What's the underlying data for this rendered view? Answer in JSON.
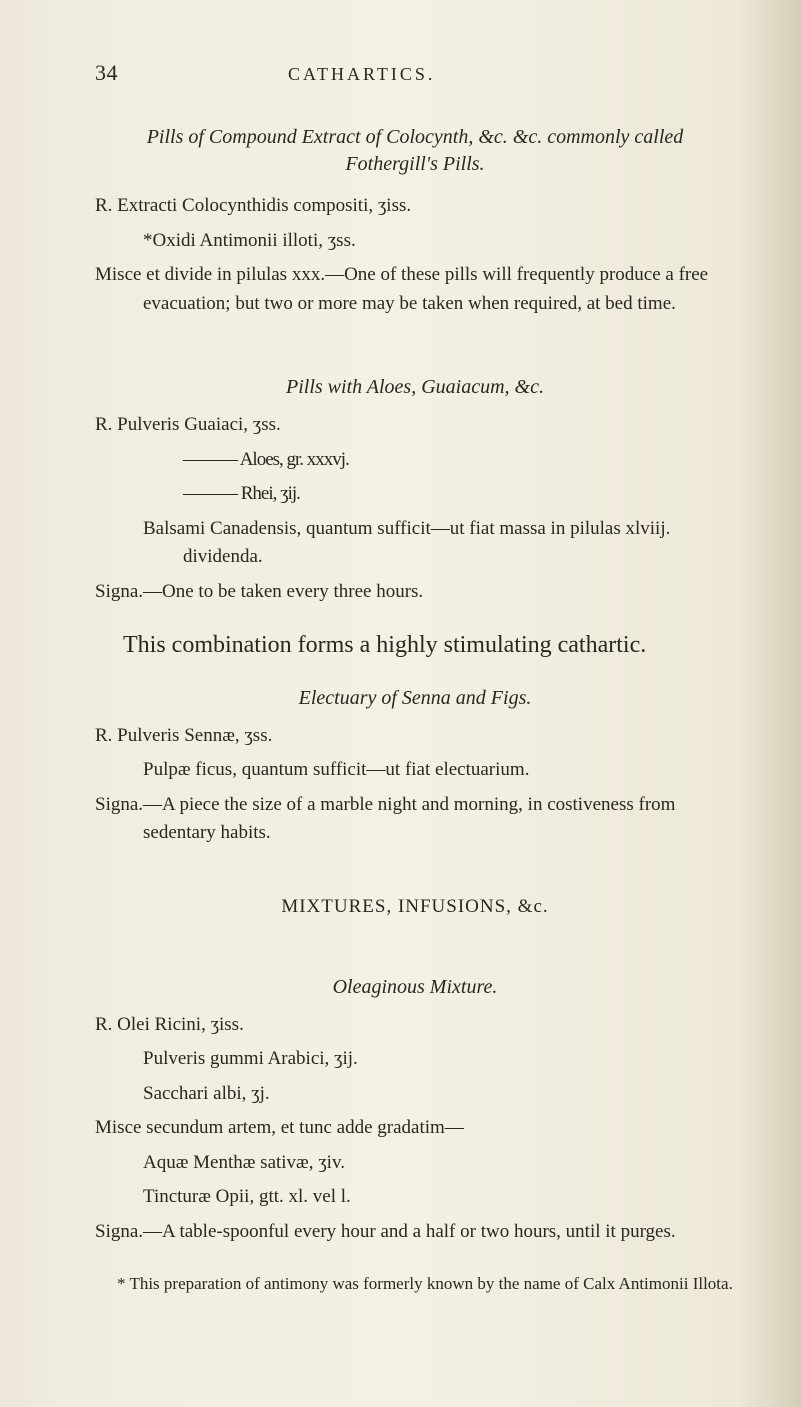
{
  "page_number": "34",
  "running_head": "CATHARTICS.",
  "sections": [
    {
      "title": "Pills of Compound Extract of Colocynth, &c. &c. commonly called Fothergill's Pills.",
      "rx": "R. Extracti Colocynthidis compositi, ʒiss.",
      "lines": [
        "*Oxidi Antimonii illoti, ʒss."
      ],
      "misce": "Misce et divide in pilulas xxx.—One of these pills will frequently produce a free evacuation; but two or more may be taken when required, at bed time."
    },
    {
      "title": "Pills with Aloes, Guaiacum, &c.",
      "rx": "R. Pulveris Guaiaci, ʒss.",
      "lines": [
        "——— Aloes, gr. xxxvj.",
        "——— Rhei, ʒij."
      ],
      "balsami": "Balsami Canadensis, quantum sufficit—ut fiat massa in pilulas xlviij. dividenda.",
      "signa": "Signa.—One to be taken every three hours."
    }
  ],
  "body_para": "This combination forms a highly stimulating cathartic.",
  "electuary": {
    "title": "Electuary of Senna and Figs.",
    "rx": "R. Pulveris Sennæ, ʒss.",
    "line1": "Pulpæ ficus, quantum sufficit—ut fiat electuarium.",
    "signa": "Signa.—A piece the size of a marble night and morning, in costiveness from sedentary habits."
  },
  "mixtures_head": "MIXTURES, INFUSIONS, &c.",
  "oleaginous": {
    "title": "Oleaginous Mixture.",
    "rx": "R. Olei Ricini, ʒiss.",
    "lines": [
      "Pulveris gummi Arabici, ʒij.",
      "Sacchari albi, ʒj."
    ],
    "misce": "Misce secundum artem, et tunc adde gradatim—",
    "lines2": [
      "Aquæ Menthæ sativæ, ʒiv.",
      "Tincturæ Opii, gtt. xl. vel l."
    ],
    "signa": "Signa.—A table-spoonful every hour and a half or two hours, until it purges."
  },
  "footnote": "* This preparation of antimony was formerly known by the name of Calx Antimonii Illota.",
  "colors": {
    "text": "#2a2620",
    "bg_left": "#ebe6d8",
    "bg_mid": "#f4f1e4",
    "bg_right": "#d4cdb8"
  },
  "typography": {
    "body_fontsize": 19,
    "large_body_fontsize": 24,
    "title_fontsize": 20,
    "footnote_fontsize": 17,
    "font_family": "Times New Roman / Georgia serif"
  }
}
